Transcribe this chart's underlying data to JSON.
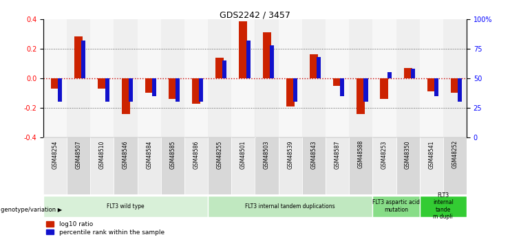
{
  "title": "GDS2242 / 3457",
  "samples": [
    "GSM48254",
    "GSM48507",
    "GSM48510",
    "GSM48546",
    "GSM48584",
    "GSM48585",
    "GSM48586",
    "GSM48255",
    "GSM48501",
    "GSM48503",
    "GSM48539",
    "GSM48543",
    "GSM48587",
    "GSM48588",
    "GSM48253",
    "GSM48350",
    "GSM48541",
    "GSM48252"
  ],
  "log10_ratio": [
    -0.07,
    0.28,
    -0.07,
    -0.24,
    -0.1,
    -0.14,
    -0.17,
    0.14,
    0.385,
    0.31,
    -0.19,
    0.16,
    -0.05,
    -0.24,
    -0.14,
    0.07,
    -0.09,
    -0.1
  ],
  "percentile_rank_raw": [
    30,
    82,
    30,
    30,
    35,
    30,
    30,
    65,
    82,
    78,
    30,
    68,
    35,
    30,
    55,
    58,
    35,
    30
  ],
  "bar_color_red": "#cc2200",
  "bar_color_blue": "#1111cc",
  "zero_line_color": "#cc0000",
  "dotted_line_color": "#555555",
  "groups": [
    {
      "label": "FLT3 wild type",
      "start": 0,
      "end": 6,
      "color": "#d8f0d8"
    },
    {
      "label": "FLT3 internal tandem duplications",
      "start": 7,
      "end": 13,
      "color": "#c0e8c0"
    },
    {
      "label": "FLT3 aspartic acid\nmutation",
      "start": 14,
      "end": 15,
      "color": "#88dd88"
    },
    {
      "label": "FLT3\ninternal\ntande\nm dupli",
      "start": 16,
      "end": 17,
      "color": "#33cc33"
    }
  ],
  "ylim": [
    -0.4,
    0.4
  ],
  "yticks_left": [
    -0.4,
    -0.2,
    0.0,
    0.2,
    0.4
  ],
  "legend_items": [
    {
      "label": "log10 ratio",
      "color": "#cc2200"
    },
    {
      "label": "percentile rank within the sample",
      "color": "#1111cc"
    }
  ]
}
